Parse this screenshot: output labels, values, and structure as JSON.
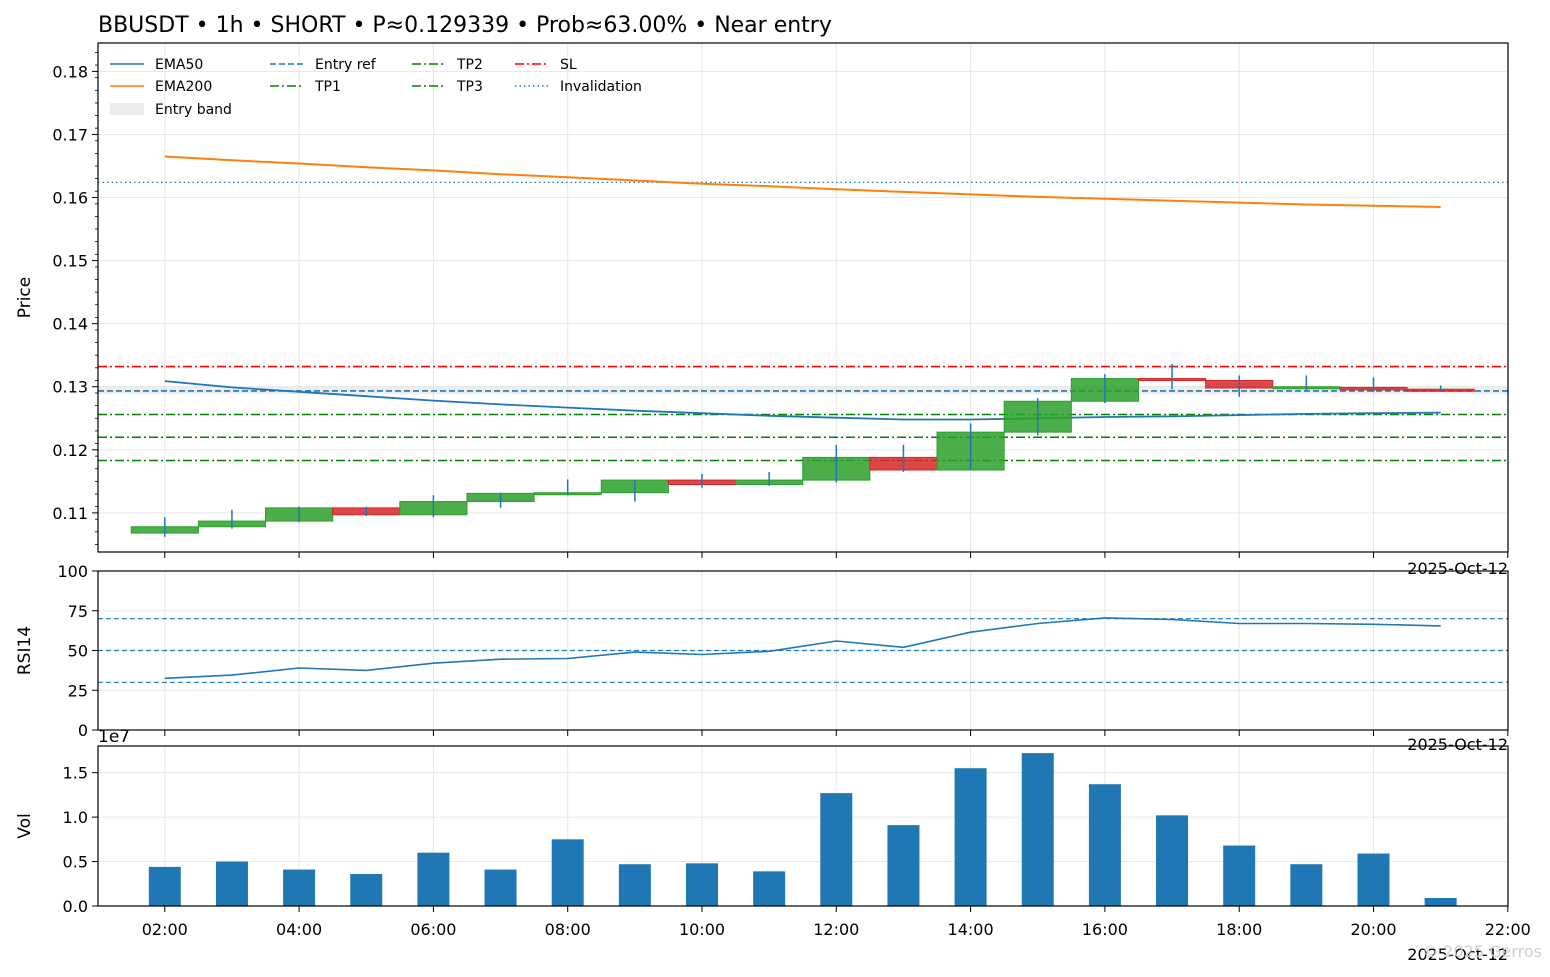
{
  "chart_data": [
    {
      "type": "candlestick",
      "title": "BBUSDT • 1h • SHORT • P≈0.129339 • Prob≈63.00% • Near entry",
      "ylabel": "Price",
      "ylim": [
        0.1038,
        0.1845
      ],
      "yticks": [
        0.11,
        0.12,
        0.13,
        0.14,
        0.15,
        0.16,
        0.17,
        0.18
      ],
      "ytick_labels": [
        "0.11",
        "0.12",
        "0.13",
        "0.14",
        "0.15",
        "0.16",
        "0.17",
        "0.18"
      ],
      "date_label": "2025-Oct-12",
      "grid": true,
      "legend_position": "top-left",
      "legend": {
        "ema50": "EMA50",
        "ema200": "EMA200",
        "band": "Entry band",
        "entry": "Entry ref",
        "tp1": "TP1",
        "tp2": "TP2",
        "tp3": "TP3",
        "sl": "SL",
        "inval": "Invalidation"
      },
      "x": [
        "02:00",
        "03:00",
        "04:00",
        "05:00",
        "06:00",
        "07:00",
        "08:00",
        "09:00",
        "10:00",
        "11:00",
        "12:00",
        "13:00",
        "14:00",
        "15:00",
        "16:00",
        "17:00",
        "18:00",
        "19:00",
        "20:00",
        "21:00"
      ],
      "candles": [
        {
          "o": 0.1068,
          "h": 0.1093,
          "l": 0.1062,
          "c": 0.1078
        },
        {
          "o": 0.1078,
          "h": 0.1105,
          "l": 0.1075,
          "c": 0.1087
        },
        {
          "o": 0.1087,
          "h": 0.111,
          "l": 0.1085,
          "c": 0.1108
        },
        {
          "o": 0.1108,
          "h": 0.111,
          "l": 0.1095,
          "c": 0.1097
        },
        {
          "o": 0.1097,
          "h": 0.1128,
          "l": 0.1093,
          "c": 0.1118
        },
        {
          "o": 0.1118,
          "h": 0.1132,
          "l": 0.1108,
          "c": 0.1131
        },
        {
          "o": 0.1131,
          "h": 0.1153,
          "l": 0.1128,
          "c": 0.1132
        },
        {
          "o": 0.1132,
          "h": 0.1153,
          "l": 0.1118,
          "c": 0.1152
        },
        {
          "o": 0.1152,
          "h": 0.1162,
          "l": 0.114,
          "c": 0.1145
        },
        {
          "o": 0.1145,
          "h": 0.1165,
          "l": 0.1143,
          "c": 0.1152
        },
        {
          "o": 0.1152,
          "h": 0.1208,
          "l": 0.1148,
          "c": 0.1188
        },
        {
          "o": 0.1188,
          "h": 0.1208,
          "l": 0.1165,
          "c": 0.1168
        },
        {
          "o": 0.1168,
          "h": 0.1242,
          "l": 0.1168,
          "c": 0.1228
        },
        {
          "o": 0.1228,
          "h": 0.1282,
          "l": 0.1223,
          "c": 0.1277
        },
        {
          "o": 0.1277,
          "h": 0.132,
          "l": 0.1274,
          "c": 0.1313
        },
        {
          "o": 0.1313,
          "h": 0.1336,
          "l": 0.1296,
          "c": 0.131
        },
        {
          "o": 0.131,
          "h": 0.1318,
          "l": 0.1284,
          "c": 0.1298
        },
        {
          "o": 0.1298,
          "h": 0.1318,
          "l": 0.1295,
          "c": 0.13
        },
        {
          "o": 0.1299,
          "h": 0.1315,
          "l": 0.1292,
          "c": 0.1295
        },
        {
          "o": 0.1296,
          "h": 0.1302,
          "l": 0.1292,
          "c": 0.1293
        }
      ],
      "ema50": [
        0.1309,
        0.1299,
        0.1292,
        0.1285,
        0.1278,
        0.1272,
        0.1267,
        0.1262,
        0.1258,
        0.1254,
        0.1251,
        0.1248,
        0.1248,
        0.125,
        0.1252,
        0.1253,
        0.1255,
        0.1257,
        0.1258,
        0.1259
      ],
      "ema200": [
        0.1665,
        0.1659,
        0.1654,
        0.1648,
        0.1643,
        0.1637,
        0.1632,
        0.1627,
        0.1622,
        0.1618,
        0.1613,
        0.1609,
        0.1605,
        0.1601,
        0.1598,
        0.1595,
        0.1592,
        0.1589,
        0.1587,
        0.1585
      ],
      "levels": {
        "entry_band": [
          0.1288,
          0.13
        ],
        "entry": 0.129339,
        "tp1": 0.1256,
        "tp2": 0.122,
        "tp3": 0.1183,
        "sl": 0.1332,
        "invalidation": 0.1624
      },
      "colors": {
        "up": "#2ca02c",
        "down": "#d62728",
        "wick": "#1f77b4",
        "ema50": "#1f77b4",
        "ema200": "#ff7f0e",
        "entry": "#1f77b4",
        "tp": "#008000",
        "sl": "#ff0000",
        "inval": "#1f77b4",
        "band": "#d9d9d9"
      }
    },
    {
      "type": "line",
      "ylabel": "RSI14",
      "ylim": [
        0,
        100
      ],
      "yticks": [
        0,
        25,
        50,
        75,
        100
      ],
      "ytick_labels": [
        "0",
        "25",
        "50",
        "75",
        "100"
      ],
      "date_label": "2025-Oct-12",
      "reference_lines": [
        30,
        50,
        70
      ],
      "values": [
        32.5,
        34.5,
        39,
        37.5,
        42,
        44.5,
        45,
        49,
        47.5,
        49.5,
        56,
        52,
        61.5,
        67,
        70.5,
        69.5,
        67,
        67,
        66.5,
        65.5
      ],
      "color": "#1f77b4"
    },
    {
      "type": "bar",
      "ylabel": "Vol",
      "ylim": [
        0,
        1.8
      ],
      "scale_label": "1e7",
      "yticks": [
        0,
        0.5,
        1.0,
        1.5
      ],
      "ytick_labels": [
        "0.0",
        "0.5",
        "1.0",
        "1.5"
      ],
      "xticks": [
        "02:00",
        "04:00",
        "06:00",
        "08:00",
        "10:00",
        "12:00",
        "14:00",
        "16:00",
        "18:00",
        "20:00",
        "22:00"
      ],
      "date_label": "2025-Oct-12",
      "values": [
        0.44,
        0.5,
        0.41,
        0.36,
        0.6,
        0.41,
        0.75,
        0.47,
        0.48,
        0.39,
        1.27,
        0.91,
        1.55,
        1.72,
        1.37,
        1.02,
        0.68,
        0.47,
        0.59,
        0.09
      ],
      "color": "#1f77b4"
    }
  ],
  "watermark": "© 2025 Gerros"
}
